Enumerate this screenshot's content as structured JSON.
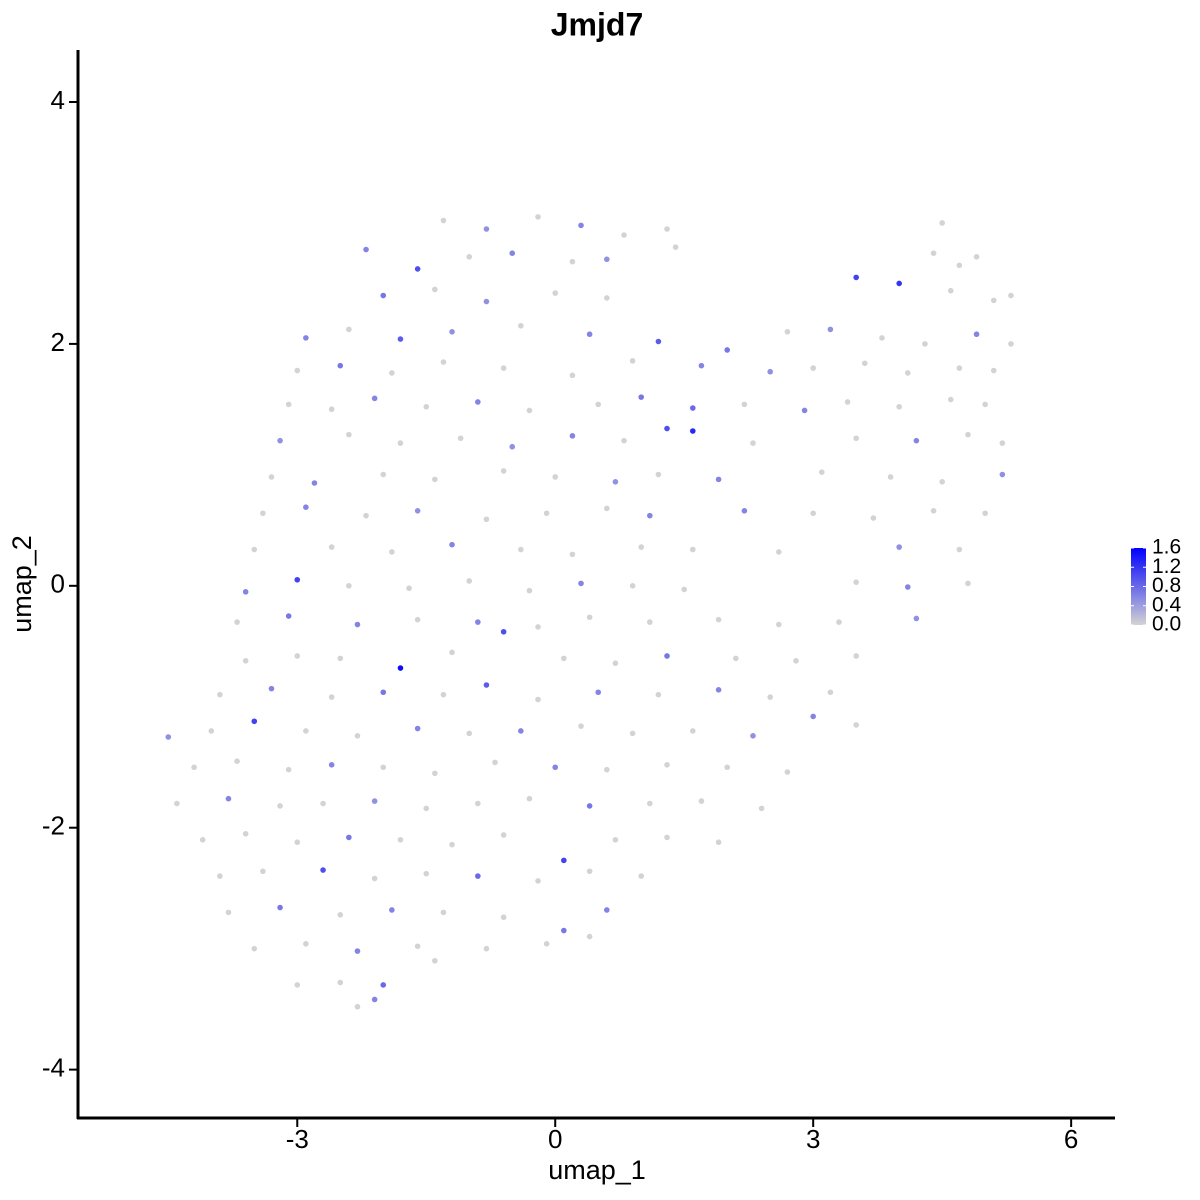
{
  "chart_data": {
    "type": "scatter",
    "title": "Jmjd7",
    "x_label": "umap_1",
    "y_label": "umap_2",
    "xlim": [
      -5.55,
      6.51
    ],
    "ylim": [
      -4.4,
      4.43
    ],
    "xticks": [
      -3,
      0,
      3,
      6
    ],
    "yticks": [
      -4,
      -2,
      0,
      2,
      4
    ],
    "color_low": "#d3d3d3",
    "color_high": "#0000ff",
    "color_ticks": [
      {
        "value": 0,
        "label": "0.0"
      },
      0.4,
      0.8,
      1.2,
      1.6
    ],
    "x": [
      -1.3,
      -0.8,
      -0.2,
      0.3,
      0.8,
      1.3,
      4.5,
      -2.2,
      -1.6,
      -1.0,
      -0.5,
      0.2,
      0.6,
      1.4,
      4.4,
      4.7,
      4.9,
      -2.0,
      -1.4,
      -0.8,
      0.0,
      0.6,
      3.5,
      4.0,
      4.6,
      5.1,
      5.3,
      -2.9,
      -2.4,
      -1.8,
      -1.2,
      -0.4,
      0.4,
      1.2,
      2.0,
      2.7,
      3.2,
      3.8,
      4.3,
      4.9,
      5.3,
      -3.0,
      -2.5,
      -1.9,
      -1.3,
      -0.6,
      0.2,
      0.9,
      1.7,
      2.5,
      3.0,
      3.6,
      4.1,
      4.7,
      5.1,
      -3.1,
      -2.6,
      -2.1,
      -1.5,
      -0.9,
      -0.3,
      0.5,
      1.0,
      1.6,
      2.2,
      2.9,
      3.4,
      4.0,
      4.6,
      5.0,
      -3.2,
      -2.4,
      -1.8,
      -1.1,
      -0.5,
      0.2,
      0.8,
      1.3,
      1.6,
      2.3,
      3.5,
      4.2,
      4.8,
      5.2,
      -3.3,
      -2.8,
      -2.0,
      -1.4,
      -0.6,
      0.0,
      0.7,
      1.2,
      1.9,
      3.1,
      3.9,
      4.5,
      5.2,
      -3.4,
      -2.9,
      -2.2,
      -1.6,
      -0.8,
      -0.1,
      0.6,
      1.1,
      2.2,
      3.0,
      3.7,
      4.4,
      5.0,
      -3.5,
      -2.6,
      -1.9,
      -1.2,
      -0.4,
      0.2,
      1.0,
      1.6,
      2.6,
      4.0,
      4.7,
      -3.6,
      -3.0,
      -2.4,
      -1.7,
      -1.0,
      -0.3,
      0.3,
      0.9,
      1.5,
      3.5,
      4.1,
      4.8,
      -3.7,
      -3.1,
      -2.3,
      -1.6,
      -0.9,
      -0.2,
      0.4,
      1.1,
      1.9,
      2.6,
      3.3,
      4.2,
      -3.6,
      -3.0,
      -2.5,
      -1.8,
      -1.2,
      -0.6,
      0.1,
      0.7,
      1.3,
      2.1,
      2.8,
      3.5,
      -3.9,
      -3.3,
      -2.6,
      -2.0,
      -1.3,
      -0.8,
      -0.2,
      0.5,
      1.2,
      1.9,
      2.5,
      3.2,
      -4.5,
      -4.0,
      -3.5,
      -2.9,
      -2.3,
      -1.6,
      -1.0,
      -0.4,
      0.3,
      0.9,
      1.6,
      2.3,
      3.0,
      3.5,
      -4.2,
      -3.7,
      -3.1,
      -2.6,
      -2.0,
      -1.4,
      -0.7,
      0.0,
      0.6,
      1.3,
      2.0,
      2.7,
      -4.4,
      -3.8,
      -3.2,
      -2.7,
      -2.1,
      -1.5,
      -0.9,
      -0.3,
      0.4,
      1.1,
      1.7,
      2.4,
      -4.1,
      -3.6,
      -3.0,
      -2.4,
      -1.8,
      -1.2,
      -0.6,
      0.1,
      0.7,
      1.3,
      1.9,
      -3.9,
      -3.4,
      -2.7,
      -2.1,
      -1.5,
      -0.9,
      -0.2,
      0.4,
      1.0,
      -3.8,
      -3.2,
      -2.5,
      -1.9,
      -1.3,
      -0.6,
      0.1,
      0.6,
      -3.5,
      -2.9,
      -2.3,
      -1.6,
      -0.8,
      -0.1,
      0.4,
      -3.0,
      -2.5,
      -2.0,
      -1.4,
      -2.3,
      -2.1
    ],
    "y": [
      3.02,
      2.95,
      3.05,
      2.98,
      2.9,
      2.95,
      3.0,
      2.78,
      2.62,
      2.72,
      2.75,
      2.68,
      2.7,
      2.8,
      2.75,
      2.65,
      2.72,
      2.4,
      2.45,
      2.35,
      2.42,
      2.38,
      2.55,
      2.5,
      2.44,
      2.36,
      2.4,
      2.05,
      2.12,
      2.04,
      2.1,
      2.15,
      2.08,
      2.02,
      1.95,
      2.1,
      2.12,
      2.05,
      2.0,
      2.08,
      2.0,
      1.78,
      1.82,
      1.76,
      1.85,
      1.8,
      1.74,
      1.86,
      1.82,
      1.77,
      1.8,
      1.84,
      1.76,
      1.8,
      1.78,
      1.5,
      1.46,
      1.55,
      1.48,
      1.52,
      1.45,
      1.5,
      1.56,
      1.47,
      1.5,
      1.45,
      1.52,
      1.48,
      1.54,
      1.5,
      1.2,
      1.25,
      1.18,
      1.22,
      1.15,
      1.24,
      1.2,
      1.3,
      1.28,
      1.18,
      1.22,
      1.2,
      1.25,
      1.18,
      0.9,
      0.85,
      0.92,
      0.88,
      0.95,
      0.9,
      0.86,
      0.92,
      0.88,
      0.94,
      0.9,
      0.86,
      0.92,
      0.6,
      0.65,
      0.58,
      0.62,
      0.55,
      0.6,
      0.64,
      0.58,
      0.62,
      0.6,
      0.56,
      0.62,
      0.6,
      0.3,
      0.32,
      0.28,
      0.34,
      0.3,
      0.26,
      0.32,
      0.3,
      0.28,
      0.32,
      0.3,
      -0.05,
      0.05,
      0.0,
      -0.02,
      0.04,
      -0.04,
      0.02,
      0.0,
      -0.03,
      0.03,
      -0.01,
      0.02,
      -0.3,
      -0.25,
      -0.32,
      -0.28,
      -0.3,
      -0.34,
      -0.26,
      -0.3,
      -0.28,
      -0.32,
      -0.3,
      -0.27,
      -0.62,
      -0.58,
      -0.6,
      -0.68,
      -0.55,
      -0.38,
      -0.6,
      -0.64,
      -0.58,
      -0.6,
      -0.62,
      -0.58,
      -0.9,
      -0.85,
      -0.92,
      -0.88,
      -0.9,
      -0.82,
      -0.94,
      -0.88,
      -0.9,
      -0.86,
      -0.92,
      -0.88,
      -1.25,
      -1.2,
      -1.12,
      -1.2,
      -1.24,
      -1.18,
      -1.22,
      -1.2,
      -1.16,
      -1.22,
      -1.2,
      -1.24,
      -1.08,
      -1.15,
      -1.5,
      -1.45,
      -1.52,
      -1.48,
      -1.5,
      -1.55,
      -1.46,
      -1.5,
      -1.52,
      -1.48,
      -1.5,
      -1.54,
      -1.8,
      -1.76,
      -1.82,
      -1.8,
      -1.78,
      -1.84,
      -1.8,
      -1.76,
      -1.82,
      -1.8,
      -1.78,
      -1.84,
      -2.1,
      -2.05,
      -2.12,
      -2.08,
      -2.1,
      -2.14,
      -2.06,
      -2.27,
      -2.1,
      -2.08,
      -2.12,
      -2.4,
      -2.36,
      -2.35,
      -2.42,
      -2.38,
      -2.4,
      -2.44,
      -2.36,
      -2.4,
      -2.7,
      -2.66,
      -2.72,
      -2.68,
      -2.7,
      -2.74,
      -2.85,
      -2.68,
      -3.0,
      -2.96,
      -3.02,
      -2.98,
      -3.0,
      -2.96,
      -2.9,
      -3.3,
      -3.28,
      -3.3,
      -3.1,
      -3.48,
      -3.42
    ],
    "values": [
      0,
      0.5,
      0,
      0.6,
      0,
      0,
      0,
      0.6,
      1.0,
      0,
      0.6,
      0,
      0.5,
      0,
      0,
      0,
      0,
      0.7,
      0,
      0.5,
      0,
      0,
      1.1,
      1.2,
      0,
      0,
      0,
      0.6,
      0,
      0.9,
      0.5,
      0,
      0.6,
      0.9,
      0.7,
      0,
      0.5,
      0,
      0,
      0.6,
      0,
      0,
      0.7,
      0,
      0,
      0,
      0,
      0,
      0.6,
      0.5,
      0,
      0,
      0,
      0,
      0,
      0,
      0,
      0.6,
      0,
      0.6,
      0,
      0,
      0.7,
      0.8,
      0,
      0.6,
      0,
      0,
      0,
      0,
      0.5,
      0,
      0,
      0,
      0.5,
      0.6,
      0,
      1.0,
      1.3,
      0,
      0,
      0.6,
      0,
      0,
      0,
      0.6,
      0,
      0,
      0,
      0,
      0.5,
      0,
      0.6,
      0,
      0,
      0,
      0.5,
      0,
      0.6,
      0,
      0.5,
      0,
      0,
      0,
      0.6,
      0.6,
      0,
      0,
      0,
      0,
      0,
      0,
      0,
      0.6,
      0,
      0,
      0,
      0,
      0,
      0.5,
      0,
      0.6,
      1.1,
      0,
      0,
      0,
      0,
      0.6,
      0,
      0,
      0,
      0.6,
      0,
      0,
      0.7,
      0.6,
      0,
      0.6,
      0,
      0,
      0,
      0,
      0,
      0,
      0.5,
      0,
      0,
      0,
      1.5,
      0,
      1.0,
      0,
      0,
      0.7,
      0,
      0,
      0,
      0,
      0.6,
      0,
      0.7,
      0,
      0.9,
      0,
      0.6,
      0,
      0.6,
      0,
      0,
      0.5,
      0,
      1.1,
      0,
      0,
      0.6,
      0,
      0.6,
      0,
      0,
      0,
      0.5,
      0.6,
      0,
      0,
      0,
      0,
      0.6,
      0,
      0,
      0,
      0.6,
      0,
      0,
      0,
      0,
      0,
      0.6,
      0,
      0,
      0.5,
      0,
      0,
      0,
      0.7,
      0,
      0,
      0,
      0,
      0,
      0,
      0.7,
      0,
      0,
      0,
      1.1,
      0,
      0,
      0,
      0,
      0,
      1.0,
      0,
      0,
      0.8,
      0,
      0,
      0,
      0,
      0.7,
      0,
      0.6,
      0,
      0,
      0.7,
      0.6,
      0,
      0,
      0.6,
      0,
      0,
      0,
      0,
      0,
      0,
      0.8,
      0,
      0,
      0.6
    ]
  }
}
